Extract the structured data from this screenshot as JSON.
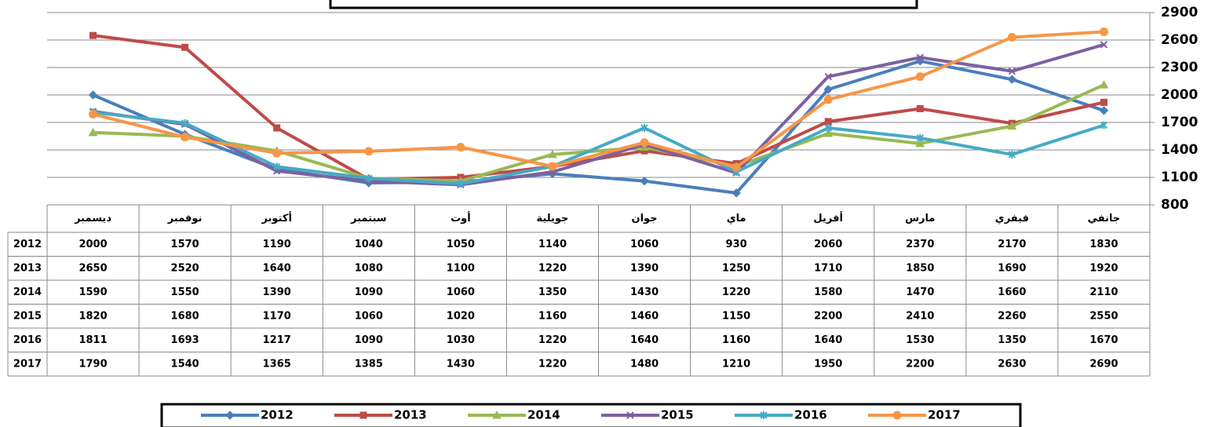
{
  "chart_data": {
    "type": "line",
    "categories": [
      "جانفي",
      "فيفري",
      "مارس",
      "أفريل",
      "ماي",
      "جوان",
      "جويلية",
      "أوت",
      "سبتمبر",
      "أكتوبر",
      "نوفمبر",
      "ديسمبر"
    ],
    "reverse_x": true,
    "ylim": [
      800,
      2900
    ],
    "yticks": [
      800,
      1100,
      1400,
      1700,
      2000,
      2300,
      2600,
      2900
    ],
    "grid": true,
    "y_axis_side": "right",
    "series": [
      {
        "name": "2012",
        "color": "#4a7ebb",
        "marker": "diamond",
        "values": [
          1830,
          2170,
          2370,
          2060,
          930,
          1060,
          1140,
          1050,
          1040,
          1190,
          1570,
          2000
        ]
      },
      {
        "name": "2013",
        "color": "#be4b48",
        "marker": "square",
        "values": [
          1920,
          1690,
          1850,
          1710,
          1250,
          1390,
          1220,
          1100,
          1080,
          1640,
          2520,
          2650
        ]
      },
      {
        "name": "2014",
        "color": "#98b954",
        "marker": "triangle",
        "values": [
          2110,
          1660,
          1470,
          1580,
          1220,
          1430,
          1350,
          1060,
          1090,
          1390,
          1550,
          1590
        ]
      },
      {
        "name": "2015",
        "color": "#7d60a0",
        "marker": "x",
        "values": [
          2550,
          2260,
          2410,
          2200,
          1150,
          1460,
          1160,
          1020,
          1060,
          1170,
          1680,
          1820
        ]
      },
      {
        "name": "2016",
        "color": "#46aac5",
        "marker": "star",
        "values": [
          1670,
          1350,
          1530,
          1640,
          1160,
          1640,
          1220,
          1030,
          1090,
          1217,
          1693,
          1811
        ]
      },
      {
        "name": "2017",
        "color": "#f79646",
        "marker": "circle",
        "values": [
          2690,
          2630,
          2200,
          1950,
          1210,
          1480,
          1220,
          1430,
          1385,
          1365,
          1540,
          1790
        ]
      }
    ]
  }
}
